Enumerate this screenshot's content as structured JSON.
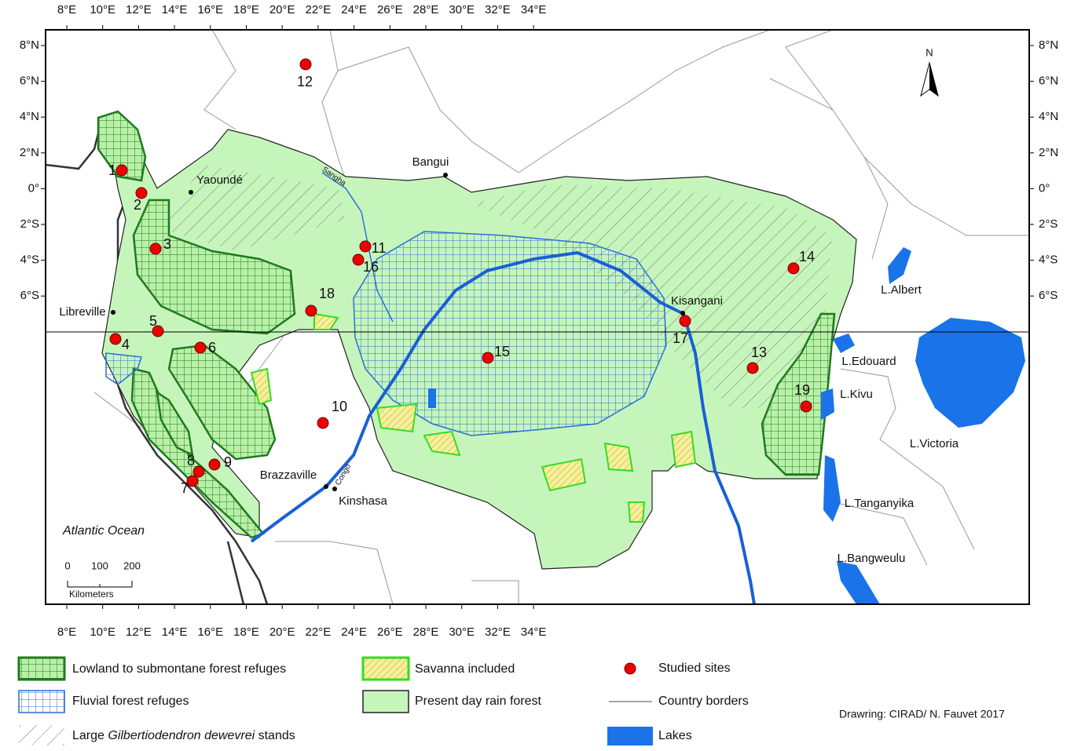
{
  "map": {
    "lon_ticks": [
      "8°E",
      "10°E",
      "12°E",
      "14°E",
      "16°E",
      "18°E",
      "20°E",
      "22°E",
      "24°E",
      "26°E",
      "28°E",
      "30°E",
      "32°E",
      "34°E"
    ],
    "lat_ticks": [
      "8°N",
      "6°N",
      "4°N",
      "2°N",
      "0°",
      "2°S",
      "4°S",
      "6°S"
    ],
    "cities": [
      "Yaoundé",
      "Bangui",
      "Libreville",
      "Kisangani",
      "Brazzaville",
      "Kinshasa"
    ],
    "lakes": [
      "L.Albert",
      "L.Edouard",
      "L.Kivu",
      "L.Victoria",
      "L.Tanganyika",
      "L.Bangweulu"
    ],
    "rivers": [
      "Sangha",
      "Congo"
    ],
    "ocean": "Atlantic Ocean",
    "north": "N",
    "scale": {
      "ticks": [
        "0",
        "100",
        "200"
      ],
      "unit": "Kilometers"
    },
    "sites": [
      "1",
      "2",
      "3",
      "4",
      "5",
      "6",
      "7",
      "8",
      "9",
      "10",
      "11",
      "12",
      "13",
      "14",
      "15",
      "16",
      "17",
      "18",
      "19"
    ],
    "credit": "Drawring: CIRAD/ N. Fauvet 2017"
  },
  "legend": {
    "lowland": "Lowland to submontane forest refuges",
    "fluvial": "Fluvial forest refuges",
    "stands": {
      "prefix": "Large",
      "italic": "Gilbertiodendron dewevrei",
      "suffix": "stands"
    },
    "savanna": "Savanna included",
    "rainforest": "Present day rain forest",
    "sites": "Studied sites",
    "borders": "Country borders",
    "lakes": "Lakes"
  }
}
